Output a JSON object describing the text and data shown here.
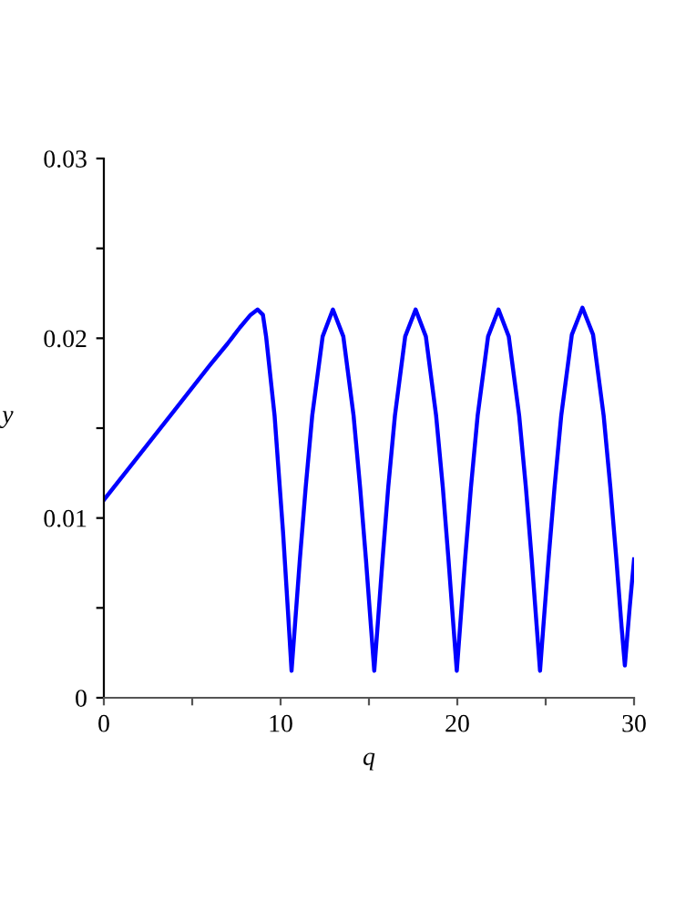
{
  "chart_data": {
    "type": "line",
    "xlabel": "q",
    "ylabel": "y",
    "xlim": [
      0,
      30
    ],
    "ylim": [
      0,
      0.03
    ],
    "xticks": [
      0,
      {
        "value": 5,
        "label": null
      },
      10,
      {
        "value": 15,
        "label": null
      },
      20,
      {
        "value": 25,
        "label": null
      },
      30
    ],
    "yticks": [
      0,
      {
        "value": 0.005,
        "label": null
      },
      0.01,
      {
        "value": 0.015,
        "label": null
      },
      0.02,
      {
        "value": 0.025,
        "label": null
      },
      0.03
    ],
    "grid": false,
    "marker": "none",
    "line_style": "solid",
    "series": [
      {
        "color": "#0000ff",
        "x": [
          0,
          2,
          4,
          6,
          7,
          7.7,
          8.3,
          8.7,
          9.0,
          9.18,
          9.66,
          10.14,
          10.43,
          10.62,
          10.81,
          11.09,
          11.42,
          11.79,
          12.38,
          12.96,
          13.55,
          14.13,
          14.5,
          14.83,
          15.11,
          15.3,
          15.49,
          15.77,
          16.09,
          16.47,
          17.05,
          17.64,
          18.22,
          18.8,
          19.18,
          19.5,
          19.78,
          19.97,
          20.16,
          20.44,
          20.77,
          21.15,
          21.74,
          22.33,
          22.91,
          23.5,
          23.88,
          24.21,
          24.49,
          24.68,
          24.87,
          25.16,
          25.5,
          25.88,
          26.48,
          27.08,
          27.68,
          28.28,
          28.66,
          29.0,
          29.29,
          29.48,
          29.75,
          30
        ],
        "values": [
          0.011,
          0.0135,
          0.016,
          0.0185,
          0.0197,
          0.0206,
          0.0213,
          0.0216,
          0.0213,
          0.0201,
          0.0157,
          0.0092,
          0.0046,
          0.0015,
          0.004,
          0.0077,
          0.0117,
          0.0157,
          0.0201,
          0.0216,
          0.0201,
          0.0157,
          0.0117,
          0.0077,
          0.004,
          0.0015,
          0.004,
          0.0077,
          0.0117,
          0.0157,
          0.0201,
          0.0216,
          0.0201,
          0.0157,
          0.0117,
          0.0077,
          0.004,
          0.0015,
          0.004,
          0.0077,
          0.0117,
          0.0157,
          0.0201,
          0.0216,
          0.0201,
          0.0157,
          0.0117,
          0.0077,
          0.004,
          0.0015,
          0.004,
          0.0077,
          0.0117,
          0.0157,
          0.0202,
          0.0217,
          0.0202,
          0.0157,
          0.0117,
          0.0077,
          0.004,
          0.0018,
          0.005,
          0.0077
        ]
      }
    ]
  }
}
